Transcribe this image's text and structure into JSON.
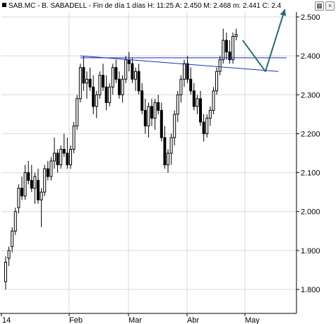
{
  "header": {
    "symbol": "SAB.MC",
    "name": "B. SABADELL",
    "period": "Fin de día 1 días",
    "quote": "H: 11:25  A: 2.450  M: 2.468  m: 2.441  C: 2.4"
  },
  "colors": {
    "candle": "#000000",
    "grid": "#d9d9d9",
    "trendline": "#1a2ec0",
    "arrow": "#2c6b73"
  },
  "icons": [
    "grid-toggle-icon",
    "close-icon"
  ],
  "chart_data": {
    "type": "candlestick",
    "title": "SAB.MC - B. SABADELL - Fin de día 1 días",
    "ylim": [
      1.78,
      2.53
    ],
    "yticks": [
      1.8,
      1.9,
      2.0,
      2.1,
      2.2,
      2.3,
      2.4,
      2.5
    ],
    "ytick_labels": [
      "1.800",
      "1.900",
      "2.000",
      "2.100",
      "2.200",
      "2.300",
      "2.400",
      "2.500"
    ],
    "xticks": [
      "14",
      "Feb",
      "Mar",
      "Abr",
      "May"
    ],
    "grid": true,
    "candles": [
      [
        1.82,
        1.885,
        1.8,
        1.87
      ],
      [
        1.88,
        1.91,
        1.86,
        1.9
      ],
      [
        1.91,
        1.96,
        1.895,
        1.95
      ],
      [
        1.95,
        2.01,
        1.94,
        2.0
      ],
      [
        2.01,
        2.07,
        1.995,
        2.06
      ],
      [
        2.06,
        2.09,
        2.03,
        2.04
      ],
      [
        2.04,
        2.12,
        2.03,
        2.1
      ],
      [
        2.1,
        2.13,
        2.07,
        2.08
      ],
      [
        2.08,
        2.12,
        2.05,
        2.06
      ],
      [
        2.06,
        2.1,
        2.02,
        2.09
      ],
      [
        2.08,
        2.11,
        2.02,
        2.03
      ],
      [
        2.03,
        2.06,
        1.96,
        2.05
      ],
      [
        2.05,
        2.12,
        2.04,
        2.11
      ],
      [
        2.11,
        2.13,
        2.08,
        2.09
      ],
      [
        2.09,
        2.14,
        2.08,
        2.13
      ],
      [
        2.13,
        2.19,
        2.11,
        2.15
      ],
      [
        2.15,
        2.16,
        2.1,
        2.12
      ],
      [
        2.12,
        2.17,
        2.11,
        2.16
      ],
      [
        2.16,
        2.2,
        2.14,
        2.15
      ],
      [
        2.15,
        2.19,
        2.11,
        2.12
      ],
      [
        2.12,
        2.17,
        2.11,
        2.16
      ],
      [
        2.16,
        2.23,
        2.15,
        2.22
      ],
      [
        2.22,
        2.3,
        2.21,
        2.29
      ],
      [
        2.29,
        2.38,
        2.28,
        2.37
      ],
      [
        2.37,
        2.4,
        2.31,
        2.33
      ],
      [
        2.33,
        2.36,
        2.29,
        2.34
      ],
      [
        2.34,
        2.37,
        2.31,
        2.32
      ],
      [
        2.32,
        2.35,
        2.25,
        2.27
      ],
      [
        2.27,
        2.31,
        2.24,
        2.3
      ],
      [
        2.3,
        2.36,
        2.29,
        2.35
      ],
      [
        2.35,
        2.38,
        2.31,
        2.32
      ],
      [
        2.32,
        2.35,
        2.26,
        2.28
      ],
      [
        2.28,
        2.33,
        2.27,
        2.32
      ],
      [
        2.32,
        2.38,
        2.3,
        2.37
      ],
      [
        2.37,
        2.39,
        2.33,
        2.34
      ],
      [
        2.34,
        2.36,
        2.29,
        2.3
      ],
      [
        2.3,
        2.35,
        2.28,
        2.34
      ],
      [
        2.34,
        2.4,
        2.33,
        2.39
      ],
      [
        2.39,
        2.41,
        2.36,
        2.38
      ],
      [
        2.38,
        2.395,
        2.33,
        2.34
      ],
      [
        2.34,
        2.37,
        2.31,
        2.36
      ],
      [
        2.36,
        2.38,
        2.3,
        2.31
      ],
      [
        2.31,
        2.33,
        2.25,
        2.26
      ],
      [
        2.26,
        2.29,
        2.2,
        2.22
      ],
      [
        2.22,
        2.28,
        2.19,
        2.27
      ],
      [
        2.27,
        2.29,
        2.22,
        2.24
      ],
      [
        2.24,
        2.29,
        2.21,
        2.28
      ],
      [
        2.28,
        2.3,
        2.25,
        2.26
      ],
      [
        2.26,
        2.28,
        2.18,
        2.19
      ],
      [
        2.19,
        2.22,
        2.11,
        2.12
      ],
      [
        2.12,
        2.16,
        2.1,
        2.15
      ],
      [
        2.15,
        2.2,
        2.12,
        2.19
      ],
      [
        2.19,
        2.26,
        2.17,
        2.25
      ],
      [
        2.25,
        2.31,
        2.23,
        2.3
      ],
      [
        2.3,
        2.35,
        2.28,
        2.34
      ],
      [
        2.34,
        2.39,
        2.32,
        2.38
      ],
      [
        2.38,
        2.4,
        2.33,
        2.34
      ],
      [
        2.34,
        2.37,
        2.3,
        2.31
      ],
      [
        2.31,
        2.33,
        2.26,
        2.27
      ],
      [
        2.27,
        2.3,
        2.25,
        2.29
      ],
      [
        2.29,
        2.31,
        2.22,
        2.23
      ],
      [
        2.23,
        2.25,
        2.18,
        2.2
      ],
      [
        2.2,
        2.25,
        2.19,
        2.24
      ],
      [
        2.24,
        2.27,
        2.22,
        2.26
      ],
      [
        2.26,
        2.32,
        2.25,
        2.31
      ],
      [
        2.31,
        2.37,
        2.3,
        2.36
      ],
      [
        2.36,
        2.4,
        2.35,
        2.39
      ],
      [
        2.39,
        2.47,
        2.38,
        2.44
      ],
      [
        2.44,
        2.46,
        2.39,
        2.41
      ],
      [
        2.41,
        2.44,
        2.38,
        2.39
      ],
      [
        2.39,
        2.46,
        2.38,
        2.45
      ],
      [
        2.45,
        2.47,
        2.44,
        2.455
      ]
    ],
    "annotations": {
      "resistance_level": 2.395,
      "trendline": [
        [
          23,
          2.4
        ],
        [
          84,
          2.36
        ]
      ],
      "forecast_arrow": [
        [
          73,
          2.44
        ],
        [
          80,
          2.36
        ],
        [
          86,
          2.52
        ]
      ]
    }
  }
}
